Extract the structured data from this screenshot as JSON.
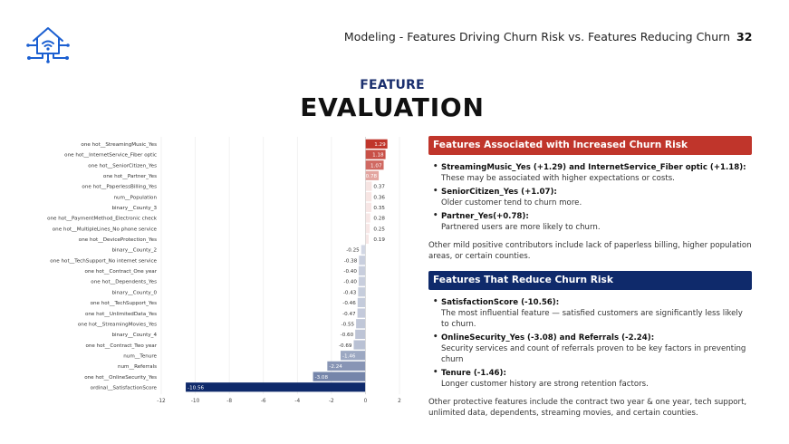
{
  "header": {
    "title": "Modeling - Features Driving Churn Risk vs. Features Reducing Churn",
    "page_number": "32"
  },
  "logo": {
    "icon": "smart-home-network-icon",
    "color": "#1b5fd1"
  },
  "slide": {
    "title_small": "FEATURE",
    "title_big": "EVALUATION"
  },
  "colors": {
    "positive": "#c0352b",
    "negative": "#0f2a6b",
    "banner_red": "#c0352b",
    "banner_blue": "#0f2a6b"
  },
  "chart_data": {
    "type": "bar",
    "orientation": "horizontal",
    "categories": [
      "one hot__StreamingMusic_Yes",
      "one hot__InternetService_Fiber optic",
      "one hot__SeniorCitizen_Yes",
      "one hot__Partner_Yes",
      "one hot__PaperlessBilling_Yes",
      "num__Population",
      "binary__County_3",
      "one hot__PaymentMethod_Electronic check",
      "one hot__MultipleLines_No phone service",
      "one hot__DeviceProtection_Yes",
      "binary__County_2",
      "one hot__TechSupport_No internet service",
      "one hot__Contract_One year",
      "one hot__Dependents_Yes",
      "binary__County_0",
      "one hot__TechSupport_Yes",
      "one hot__UnlimitedData_Yes",
      "one hot__StreamingMovies_Yes",
      "binary__County_4",
      "one hot__Contract_Two year",
      "num__Tenure",
      "num__Referrals",
      "one hot__OnlineSecurity_Yes",
      "ordinal__SatisfactionScore"
    ],
    "values": [
      1.29,
      1.18,
      1.07,
      0.78,
      0.37,
      0.36,
      0.35,
      0.28,
      0.25,
      0.19,
      -0.25,
      -0.38,
      -0.4,
      -0.4,
      -0.43,
      -0.46,
      -0.47,
      -0.55,
      -0.6,
      -0.69,
      -1.46,
      -2.24,
      -3.08,
      -10.56
    ],
    "labels": [
      "1.29",
      "1.18",
      "1.07",
      "0.78",
      "0.37",
      "0.36",
      "0.35",
      "0.28",
      "0.25",
      "0.19",
      "-0.25",
      "-0.38",
      "-0.40",
      "-0.40",
      "-0.43",
      "-0.46",
      "-0.47",
      "-0.55",
      "-0.60",
      "-0.69",
      "-1.46",
      "-2.24",
      "-3.08",
      "-10.56"
    ],
    "xticks": [
      -12,
      -10,
      -8,
      -6,
      -4,
      -2,
      0,
      2
    ],
    "xlim": [
      -12,
      2
    ],
    "grid": true,
    "legend": "none"
  },
  "increase": {
    "banner": "Features Associated with Increased Churn Risk",
    "items": [
      {
        "head": "StreamingMusic_Yes (+1.29) and InternetService_Fiber optic (+1.18):",
        "body": "These may be associated with higher expectations or costs."
      },
      {
        "head": "SeniorCitizen_Yes (+1.07):",
        "body": "Older customer tend to churn more."
      },
      {
        "head": "Partner_Yes(+0.78):",
        "body": "Partnered users are more likely to churn."
      }
    ],
    "note": "Other mild positive contributors include lack of paperless billing, higher population areas, or certain counties."
  },
  "reduce": {
    "banner": "Features That Reduce Churn Risk",
    "items": [
      {
        "head": "SatisfactionScore (-10.56):",
        "body": "The most influential feature — satisfied customers are significantly less likely to churn."
      },
      {
        "head": "OnlineSecurity_Yes (-3.08) and Referrals (-2.24):",
        "body": "Security services and count of referrals proven to be key factors in preventing churn"
      },
      {
        "head": "Tenure  (-1.46):",
        "body": "Longer customer history are strong retention factors."
      }
    ],
    "note": "Other protective features include the contract two year & one year, tech support, unlimited data, dependents, streaming movies, and certain counties."
  }
}
